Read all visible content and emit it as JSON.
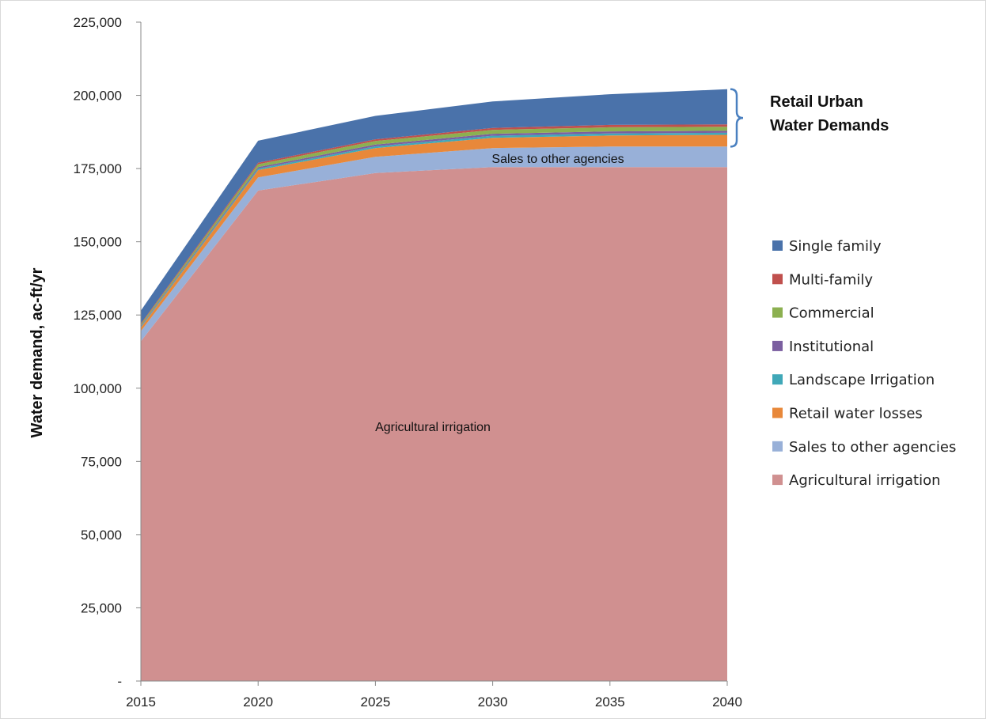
{
  "chart_data": {
    "type": "area",
    "stacked": true,
    "title": "",
    "xlabel": "",
    "ylabel": "Water demand, ac-ft/yr",
    "x": [
      2015,
      2020,
      2025,
      2030,
      2035,
      2040
    ],
    "x_tick_labels": [
      "2015",
      "2020",
      "2025",
      "2030",
      "2035",
      "2040"
    ],
    "ylim": [
      0,
      225000
    ],
    "y_tick_labels": [
      "-",
      "25,000",
      "50,000",
      "75,000",
      "100,000",
      "125,000",
      "150,000",
      "175,000",
      "200,000",
      "225,000"
    ],
    "grid": false,
    "legend_position": "right",
    "series": [
      {
        "name": "Agricultural irrigation",
        "color": "#d09090",
        "values": [
          116000,
          167500,
          173500,
          175500,
          175500,
          175500
        ]
      },
      {
        "name": "Sales to other agencies",
        "color": "#98b0d8",
        "values": [
          3500,
          4500,
          5500,
          6500,
          7000,
          7000
        ]
      },
      {
        "name": "Retail water losses",
        "color": "#e8883a",
        "values": [
          1200,
          2500,
          3000,
          3500,
          3800,
          4000
        ]
      },
      {
        "name": "Landscape Irrigation",
        "color": "#40a8b8",
        "values": [
          300,
          500,
          600,
          700,
          700,
          700
        ]
      },
      {
        "name": "Institutional",
        "color": "#7b5fa0",
        "values": [
          300,
          500,
          600,
          700,
          700,
          700
        ]
      },
      {
        "name": "Commercial",
        "color": "#8cb050",
        "values": [
          500,
          1000,
          1200,
          1300,
          1400,
          1400
        ]
      },
      {
        "name": "Multi-family",
        "color": "#c0504d",
        "values": [
          300,
          500,
          600,
          700,
          800,
          800
        ]
      },
      {
        "name": "Single family",
        "color": "#4a72aa",
        "values": [
          4400,
          7500,
          8000,
          9000,
          10500,
          12000
        ]
      }
    ],
    "legend_order": [
      "Single family",
      "Multi-family",
      "Commercial",
      "Institutional",
      "Landscape Irrigation",
      "Retail water losses",
      "Sales to other agencies",
      "Agricultural irrigation"
    ],
    "annotations": {
      "agricultural": "Agricultural irrigation",
      "sales": "Sales to other agencies",
      "bracket_line1": "Retail Urban",
      "bracket_line2": "Water Demands"
    }
  }
}
